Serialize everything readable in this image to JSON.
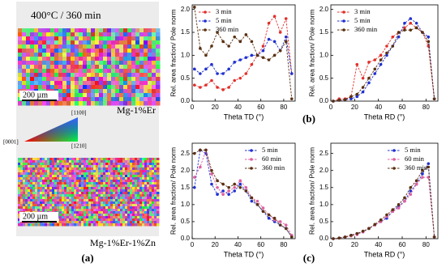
{
  "figure": {
    "map_top_title": "400°C / 360 min",
    "scale_bar": "200 µm",
    "alloy_top": "Mg-1%Er",
    "alloy_bottom": "Mg-1%Er-1%Zn",
    "ipf_labels": [
      "[0001]",
      "[1210]",
      "[1100]"
    ],
    "panel_a": "(a)",
    "panel_b": "(b)",
    "panel_c": "(c)"
  },
  "chart_data": [
    {
      "type": "line",
      "x_label": "Theta TD (°)",
      "y_label": "Rel. area fraction/ Pole norm",
      "legend": "upper left",
      "x": [
        2,
        7,
        12,
        17,
        22,
        27,
        32,
        37,
        42,
        47,
        52,
        57,
        62,
        67,
        72,
        77,
        82,
        87
      ],
      "xlim": [
        0,
        90
      ],
      "xticks": [
        0,
        20,
        40,
        60,
        80
      ],
      "ylim": [
        0,
        2.1
      ],
      "yticks": [
        {
          "value": 0,
          "label": "0.0"
        },
        0.5,
        {
          "value": 1,
          "label": "1.0"
        },
        1.5,
        {
          "value": 2,
          "label": "2.0"
        }
      ],
      "series": [
        {
          "name": "3 min",
          "color": "#e0302a",
          "values": [
            0.35,
            0.3,
            0.35,
            0.45,
            0.3,
            0.25,
            0.3,
            0.45,
            0.5,
            0.6,
            0.8,
            1.0,
            1.2,
            1.7,
            1.85,
            1.5,
            1.8,
            0.6
          ]
        },
        {
          "name": "5 min",
          "color": "#2030d0",
          "values": [
            0.7,
            0.6,
            0.7,
            0.8,
            0.6,
            0.6,
            0.7,
            0.85,
            0.9,
            0.95,
            1.0,
            1.0,
            1.1,
            1.35,
            1.3,
            1.1,
            1.4,
            0.6
          ]
        },
        {
          "name": "360 min",
          "color": "#5a3010",
          "values": [
            2.05,
            1.15,
            1.0,
            1.2,
            1.5,
            1.3,
            1.2,
            1.4,
            1.3,
            1.45,
            1.3,
            1.0,
            0.95,
            0.9,
            1.0,
            1.1,
            1.3,
            0.05
          ]
        }
      ]
    },
    {
      "type": "line",
      "x_label": "Theta RD (°)",
      "y_label": "Rel. area fraction/ Pole norm",
      "legend": "upper left",
      "x": [
        2,
        7,
        12,
        17,
        22,
        27,
        32,
        37,
        42,
        47,
        52,
        57,
        62,
        67,
        72,
        77,
        82,
        87
      ],
      "xlim": [
        0,
        90
      ],
      "xticks": [
        0,
        20,
        40,
        60,
        80
      ],
      "ylim": [
        0,
        2.1
      ],
      "yticks": [
        {
          "value": 0,
          "label": "0.0"
        },
        0.5,
        {
          "value": 1,
          "label": "1.0"
        },
        1.5,
        {
          "value": 2,
          "label": "2.0"
        }
      ],
      "series": [
        {
          "name": "3 min",
          "color": "#e0302a",
          "values": [
            0,
            0.05,
            0.05,
            0.1,
            0.8,
            0.5,
            0.85,
            0.9,
            1.0,
            1.2,
            1.4,
            1.5,
            1.6,
            1.7,
            1.6,
            1.5,
            1.2,
            0.05
          ]
        },
        {
          "name": "5 min",
          "color": "#2030d0",
          "values": [
            0,
            0.02,
            0.03,
            0.05,
            0.1,
            0.2,
            0.4,
            0.6,
            0.8,
            1.0,
            1.2,
            1.4,
            1.7,
            1.8,
            1.7,
            1.5,
            1.4,
            0.05
          ]
        },
        {
          "name": "360 min",
          "color": "#5a3010",
          "values": [
            0,
            0.02,
            0.03,
            0.1,
            0.15,
            0.3,
            0.5,
            0.7,
            0.9,
            1.05,
            1.2,
            1.5,
            1.55,
            1.55,
            1.6,
            1.5,
            1.3,
            0.05
          ]
        }
      ]
    },
    {
      "type": "line",
      "x_label": "Theta TD (°)",
      "y_label": "Rel. area fraction/ Pole norm",
      "legend": "upper right",
      "x": [
        2,
        7,
        12,
        17,
        22,
        27,
        32,
        37,
        42,
        47,
        52,
        57,
        62,
        67,
        72,
        77,
        82,
        87
      ],
      "xlim": [
        0,
        90
      ],
      "xticks": [
        0,
        20,
        40,
        60,
        80
      ],
      "ylim": [
        0,
        2.8
      ],
      "yticks": [
        {
          "value": 0,
          "label": "0.0"
        },
        0.5,
        {
          "value": 1,
          "label": "1.0"
        },
        1.5,
        {
          "value": 2,
          "label": "2.0"
        },
        2.5
      ],
      "series": [
        {
          "name": "5 min",
          "color": "#2030d0",
          "values": [
            1.5,
            2.6,
            2.5,
            1.6,
            1.3,
            1.4,
            1.3,
            1.4,
            1.6,
            1.4,
            1.1,
            1.0,
            0.8,
            0.6,
            0.5,
            0.4,
            0.3,
            0.05
          ]
        },
        {
          "name": "60 min",
          "color": "#e060a0",
          "values": [
            1.8,
            2.1,
            2.6,
            1.9,
            1.5,
            1.3,
            1.4,
            1.5,
            1.7,
            1.5,
            1.2,
            1.1,
            0.9,
            0.7,
            0.55,
            0.5,
            0.4,
            0.1
          ]
        },
        {
          "name": "360 min",
          "color": "#5a3010",
          "values": [
            2.5,
            2.6,
            2.6,
            2.0,
            1.7,
            1.6,
            1.5,
            1.6,
            1.5,
            1.4,
            1.2,
            1.0,
            0.8,
            0.7,
            0.6,
            0.4,
            0.3,
            0.05
          ]
        }
      ]
    },
    {
      "type": "line",
      "x_label": "Theta RD (°)",
      "y_label": "Rel. area fraction/ Pole norm",
      "legend": "upper right",
      "x": [
        2,
        7,
        12,
        17,
        22,
        27,
        32,
        37,
        42,
        47,
        52,
        57,
        62,
        67,
        72,
        77,
        82,
        87
      ],
      "xlim": [
        0,
        90
      ],
      "xticks": [
        0,
        20,
        40,
        60,
        80
      ],
      "ylim": [
        0,
        2.8
      ],
      "yticks": [
        {
          "value": 0,
          "label": "0.0"
        },
        0.5,
        {
          "value": 1,
          "label": "1.0"
        },
        1.5,
        {
          "value": 2,
          "label": "2.0"
        },
        2.5
      ],
      "series": [
        {
          "name": "5 min",
          "color": "#2030d0",
          "values": [
            0,
            0.02,
            0.05,
            0.1,
            0.15,
            0.2,
            0.3,
            0.4,
            0.5,
            0.6,
            0.8,
            0.95,
            1.1,
            1.4,
            1.6,
            1.9,
            2.2,
            0.05
          ]
        },
        {
          "name": "60 min",
          "color": "#e060a0",
          "values": [
            0,
            0.02,
            0.05,
            0.08,
            0.12,
            0.2,
            0.3,
            0.4,
            0.5,
            0.65,
            0.8,
            0.9,
            1.1,
            1.3,
            1.6,
            1.8,
            1.8,
            0.05
          ]
        },
        {
          "name": "360 min",
          "color": "#5a3010",
          "values": [
            0,
            0.02,
            0.05,
            0.1,
            0.15,
            0.22,
            0.3,
            0.42,
            0.55,
            0.7,
            0.85,
            1.0,
            1.2,
            1.5,
            1.7,
            2.0,
            2.1,
            0.05
          ]
        }
      ]
    }
  ]
}
